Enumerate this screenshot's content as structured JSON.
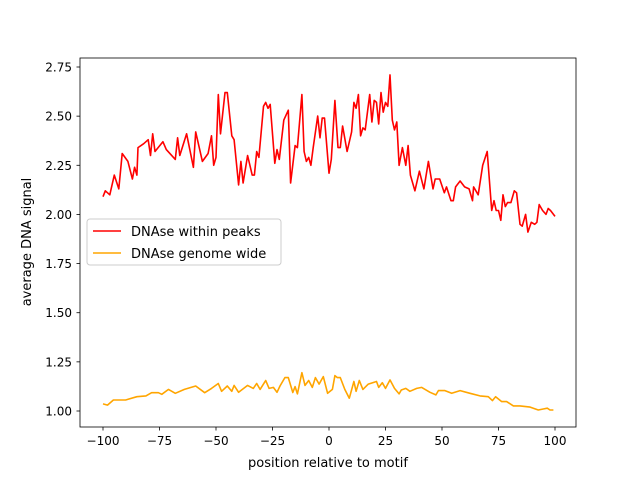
{
  "chart_data": {
    "type": "line",
    "title": "",
    "xlabel": "position relative to motif",
    "ylabel": "average DNA signal",
    "xlim": [
      -110,
      110
    ],
    "ylim": [
      0.93,
      2.8
    ],
    "xticks": [
      -100,
      -75,
      -50,
      -25,
      0,
      25,
      50,
      75,
      100
    ],
    "xtick_labels": [
      "−100",
      "−75",
      "−50",
      "−25",
      "0",
      "25",
      "50",
      "75",
      "100"
    ],
    "yticks": [
      1.0,
      1.25,
      1.5,
      1.75,
      2.0,
      2.25,
      2.5,
      2.75
    ],
    "ytick_labels": [
      "1.00",
      "1.25",
      "1.50",
      "1.75",
      "2.00",
      "2.25",
      "2.50",
      "2.75"
    ],
    "grid": false,
    "legend_position": "center-left",
    "series": [
      {
        "name": "DNAse within peaks",
        "color": "#ff0000",
        "x": [
          -100,
          -99,
          -97,
          -95,
          -93,
          -91.5,
          -89,
          -87,
          -86,
          -85,
          -84.5,
          -82,
          -80,
          -79,
          -78,
          -77,
          -73.5,
          -72,
          -68,
          -67,
          -66,
          -63,
          -60,
          -59,
          -56,
          -53.5,
          -52,
          -51,
          -50,
          -49,
          -48,
          -46,
          -45,
          -43,
          -42,
          -40,
          -39,
          -38,
          -36,
          -34,
          -33,
          -32,
          -31,
          -29,
          -28,
          -27,
          -26,
          -24,
          -23,
          -22,
          -20,
          -18,
          -17,
          -15,
          -14,
          -12,
          -11,
          -10,
          -9,
          -8,
          -7,
          -5,
          -4,
          -3,
          -2,
          0,
          1,
          2.6,
          4,
          5,
          6,
          8,
          10,
          11,
          12,
          13,
          14,
          15,
          16,
          18,
          19,
          20,
          21,
          22,
          23,
          24,
          25,
          26,
          27,
          28,
          29,
          30,
          31,
          32.5,
          34,
          35,
          36,
          38,
          40,
          42,
          44,
          46,
          47,
          49,
          51,
          52,
          54,
          55,
          56,
          58,
          60,
          62,
          63.5,
          64,
          66,
          68,
          70,
          72,
          73,
          74,
          75,
          76,
          77,
          78,
          79,
          80.5,
          82,
          83,
          84.5,
          85.5,
          87,
          88,
          89.5,
          91,
          92,
          93,
          94.5,
          96,
          97,
          98,
          100
        ],
        "y": [
          2.09,
          2.12,
          2.1,
          2.2,
          2.13,
          2.31,
          2.27,
          2.18,
          2.24,
          2.2,
          2.34,
          2.36,
          2.38,
          2.3,
          2.41,
          2.32,
          2.37,
          2.33,
          2.28,
          2.39,
          2.3,
          2.41,
          2.24,
          2.42,
          2.27,
          2.31,
          2.4,
          2.25,
          2.29,
          2.61,
          2.41,
          2.62,
          2.62,
          2.4,
          2.38,
          2.15,
          2.27,
          2.16,
          2.3,
          2.2,
          2.2,
          2.32,
          2.29,
          2.55,
          2.57,
          2.54,
          2.56,
          2.26,
          2.33,
          2.28,
          2.48,
          2.53,
          2.16,
          2.35,
          2.34,
          2.61,
          2.32,
          2.27,
          2.29,
          2.25,
          2.34,
          2.5,
          2.39,
          2.49,
          2.49,
          2.21,
          2.28,
          2.58,
          2.34,
          2.34,
          2.45,
          2.32,
          2.42,
          2.57,
          2.54,
          2.61,
          2.4,
          2.44,
          2.43,
          2.61,
          2.47,
          2.58,
          2.57,
          2.46,
          2.62,
          2.52,
          2.57,
          2.55,
          2.71,
          2.48,
          2.43,
          2.47,
          2.25,
          2.34,
          2.25,
          2.35,
          2.2,
          2.12,
          2.22,
          2.13,
          2.27,
          2.13,
          2.18,
          2.18,
          2.11,
          2.14,
          2.07,
          2.07,
          2.14,
          2.17,
          2.14,
          2.13,
          2.07,
          2.14,
          2.1,
          2.25,
          2.32,
          2.02,
          2.07,
          2.02,
          2.02,
          1.97,
          2.1,
          2.04,
          2.06,
          2.06,
          2.12,
          2.11,
          1.95,
          1.94,
          2.0,
          1.91,
          1.96,
          1.95,
          1.96,
          2.05,
          2.02,
          2.0,
          2.03,
          2.02,
          1.99
        ]
      },
      {
        "name": "DNAse genome wide",
        "color": "#ffa500",
        "x": [
          -100,
          -98,
          -95.4,
          -90,
          -85,
          -81,
          -78.5,
          -75.5,
          -74,
          -71,
          -68,
          -64,
          -59,
          -55,
          -52,
          -49,
          -47.5,
          -45,
          -43,
          -42,
          -40,
          -36,
          -33.5,
          -32,
          -30.5,
          -28,
          -26.5,
          -24.6,
          -23,
          -21.7,
          -19.5,
          -18,
          -16,
          -15,
          -14,
          -12,
          -10.6,
          -9,
          -7.4,
          -6,
          -4.4,
          -2.5,
          -0.6,
          1.5,
          2.6,
          3.7,
          5,
          7,
          9,
          11,
          12,
          13.4,
          15,
          17.4,
          21,
          22,
          23.6,
          25,
          27,
          29,
          31,
          32,
          34,
          35.8,
          38.8,
          41,
          44.7,
          47.3,
          48.4,
          51.3,
          54.3,
          58,
          62.4,
          66.8,
          70.5,
          72.3,
          73.7,
          76.4,
          78.6,
          81.6,
          84.5,
          89,
          92.6,
          94.8,
          96.6,
          97.8,
          99.3
        ],
        "y": [
          1.036,
          1.03,
          1.056,
          1.056,
          1.073,
          1.077,
          1.093,
          1.093,
          1.085,
          1.11,
          1.09,
          1.11,
          1.127,
          1.093,
          1.115,
          1.14,
          1.1,
          1.127,
          1.1,
          1.13,
          1.095,
          1.13,
          1.115,
          1.14,
          1.11,
          1.155,
          1.115,
          1.12,
          1.095,
          1.127,
          1.17,
          1.17,
          1.094,
          1.124,
          1.087,
          1.195,
          1.13,
          1.155,
          1.12,
          1.17,
          1.137,
          1.175,
          1.09,
          1.11,
          1.18,
          1.17,
          1.17,
          1.11,
          1.065,
          1.15,
          1.1,
          1.155,
          1.11,
          1.137,
          1.15,
          1.12,
          1.144,
          1.115,
          1.158,
          1.115,
          1.087,
          1.107,
          1.115,
          1.1,
          1.115,
          1.12,
          1.095,
          1.082,
          1.104,
          1.104,
          1.09,
          1.104,
          1.09,
          1.077,
          1.073,
          1.053,
          1.073,
          1.048,
          1.048,
          1.026,
          1.026,
          1.02,
          1.005,
          1.01,
          1.014,
          1.005,
          1.005
        ]
      }
    ]
  }
}
